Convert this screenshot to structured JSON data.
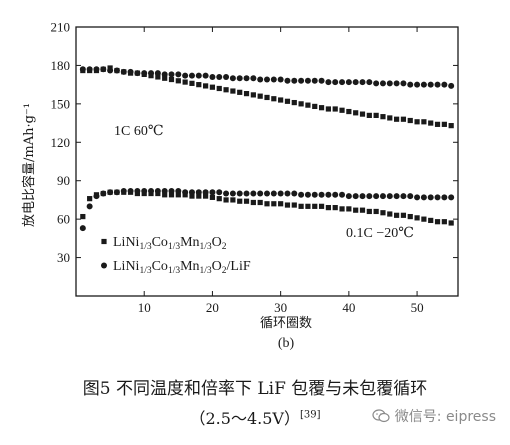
{
  "chart_data": {
    "type": "scatter",
    "xlabel": "循环圈数",
    "ylabel": "放电比容量/mAh·g⁻¹",
    "xlim": [
      0,
      56
    ],
    "ylim": [
      0,
      210
    ],
    "xticks": [
      10,
      20,
      30,
      40,
      50
    ],
    "yticks": [
      30,
      60,
      90,
      120,
      150,
      180,
      210
    ],
    "panel_label": "(b)",
    "annotations": [
      {
        "text": "1C 60℃",
        "near": "upper-left"
      },
      {
        "text": "0.1C  −20℃",
        "near": "lower-right"
      }
    ],
    "legend": {
      "placement": "lower-left"
    },
    "series": [
      {
        "name_parts": [
          "LiNi",
          "1/3",
          "Co",
          "1/3",
          "Mn",
          "1/3",
          "O",
          "2"
        ],
        "marker": "square",
        "group": "1C 60℃",
        "x": [
          1,
          2,
          3,
          4,
          5,
          6,
          7,
          8,
          9,
          10,
          11,
          12,
          13,
          14,
          15,
          16,
          17,
          18,
          19,
          20,
          21,
          22,
          23,
          24,
          25,
          26,
          27,
          28,
          29,
          30,
          31,
          32,
          33,
          34,
          35,
          36,
          37,
          38,
          39,
          40,
          41,
          42,
          43,
          44,
          45,
          46,
          47,
          48,
          49,
          50,
          51,
          52,
          53,
          54,
          55
        ],
        "y": [
          176,
          176,
          176,
          177,
          178,
          176,
          175,
          174,
          174,
          173,
          172,
          171,
          170,
          169,
          168,
          167,
          166,
          165,
          164,
          163,
          162,
          161,
          160,
          159,
          158,
          157,
          156,
          155,
          154,
          153,
          152,
          151,
          150,
          149,
          148,
          147,
          146,
          146,
          145,
          144,
          143,
          142,
          141,
          141,
          140,
          139,
          138,
          138,
          137,
          136,
          136,
          135,
          134,
          134,
          133
        ]
      },
      {
        "name_parts": [
          "LiNi",
          "1/3",
          "Co",
          "1/3",
          "Mn",
          "1/3",
          "O",
          "2",
          "/LiF"
        ],
        "marker": "circle",
        "group": "1C 60℃",
        "x": [
          1,
          2,
          3,
          4,
          5,
          6,
          7,
          8,
          9,
          10,
          11,
          12,
          13,
          14,
          15,
          16,
          17,
          18,
          19,
          20,
          21,
          22,
          23,
          24,
          25,
          26,
          27,
          28,
          29,
          30,
          31,
          32,
          33,
          34,
          35,
          36,
          37,
          38,
          39,
          40,
          41,
          42,
          43,
          44,
          45,
          46,
          47,
          48,
          49,
          50,
          51,
          52,
          53,
          54,
          55
        ],
        "y": [
          177,
          177,
          177,
          177,
          176,
          176,
          175,
          175,
          174,
          174,
          174,
          174,
          173,
          173,
          173,
          172,
          172,
          172,
          172,
          171,
          171,
          171,
          170,
          170,
          170,
          170,
          169,
          169,
          169,
          169,
          168,
          168,
          168,
          168,
          168,
          168,
          167,
          167,
          167,
          167,
          167,
          167,
          167,
          166,
          166,
          166,
          166,
          166,
          165,
          165,
          165,
          165,
          165,
          165,
          164
        ]
      },
      {
        "name_parts": [
          "LiNi",
          "1/3",
          "Co",
          "1/3",
          "Mn",
          "1/3",
          "O",
          "2"
        ],
        "marker": "square",
        "group": "0.1C −20℃",
        "x": [
          1,
          2,
          3,
          4,
          5,
          6,
          7,
          8,
          9,
          10,
          11,
          12,
          13,
          14,
          15,
          16,
          17,
          18,
          19,
          20,
          21,
          22,
          23,
          24,
          25,
          26,
          27,
          28,
          29,
          30,
          31,
          32,
          33,
          34,
          35,
          36,
          37,
          38,
          39,
          40,
          41,
          42,
          43,
          44,
          45,
          46,
          47,
          48,
          49,
          50,
          51,
          52,
          53,
          54,
          55
        ],
        "y": [
          62,
          76,
          79,
          80,
          81,
          81,
          81,
          81,
          80,
          80,
          80,
          80,
          79,
          79,
          79,
          79,
          78,
          78,
          78,
          77,
          76,
          75,
          75,
          74,
          74,
          73,
          73,
          72,
          72,
          72,
          71,
          71,
          70,
          70,
          70,
          70,
          69,
          69,
          68,
          68,
          67,
          67,
          66,
          66,
          65,
          64,
          63,
          63,
          62,
          61,
          60,
          59,
          58,
          58,
          57
        ]
      },
      {
        "name_parts": [
          "LiNi",
          "1/3",
          "Co",
          "1/3",
          "Mn",
          "1/3",
          "O",
          "2",
          "/LiF"
        ],
        "marker": "circle",
        "group": "0.1C −20℃",
        "x": [
          1,
          2,
          3,
          4,
          5,
          6,
          7,
          8,
          9,
          10,
          11,
          12,
          13,
          14,
          15,
          16,
          17,
          18,
          19,
          20,
          21,
          22,
          23,
          24,
          25,
          26,
          27,
          28,
          29,
          30,
          31,
          32,
          33,
          34,
          35,
          36,
          37,
          38,
          39,
          40,
          41,
          42,
          43,
          44,
          45,
          46,
          47,
          48,
          49,
          50,
          51,
          52,
          53,
          54,
          55
        ],
        "y": [
          53,
          70,
          78,
          80,
          81,
          81,
          82,
          82,
          82,
          82,
          82,
          82,
          82,
          82,
          82,
          81,
          81,
          81,
          81,
          81,
          81,
          80,
          80,
          80,
          80,
          80,
          80,
          80,
          80,
          80,
          80,
          80,
          79,
          79,
          79,
          79,
          79,
          79,
          79,
          78,
          78,
          78,
          78,
          78,
          78,
          78,
          78,
          78,
          78,
          77,
          77,
          77,
          77,
          77,
          77
        ]
      }
    ]
  },
  "caption": {
    "line1": "图5   不同温度和倍率下 LiF 包覆与未包覆循环",
    "line2": "（2.5～4.5V）",
    "ref": "[39]"
  },
  "watermark": {
    "text": "微信号: eipress",
    "icon": "wechat-icon"
  },
  "colors": {
    "ink": "#1a1a1a",
    "watermark": "#8a8a8a"
  }
}
